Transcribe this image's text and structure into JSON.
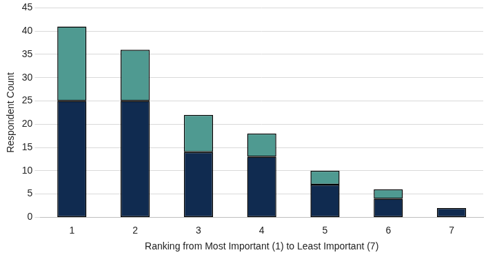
{
  "chart_data": {
    "type": "bar",
    "x_label": "Ranking from Most Important (1) to Least Important (7)",
    "y_label": "Respondent Count",
    "categories": [
      "1",
      "2",
      "3",
      "4",
      "5",
      "6",
      "7"
    ],
    "series": [
      {
        "color": "#102b50",
        "values": [
          25,
          25,
          14,
          13,
          7,
          4,
          2
        ]
      },
      {
        "color": "#4f9a91",
        "values": [
          16,
          11,
          8,
          5,
          3,
          2,
          0
        ]
      }
    ],
    "stacked": true,
    "ylim": [
      0,
      45
    ],
    "yticks": [
      0,
      5,
      10,
      15,
      20,
      25,
      30,
      35,
      40,
      45
    ],
    "grid": true
  }
}
